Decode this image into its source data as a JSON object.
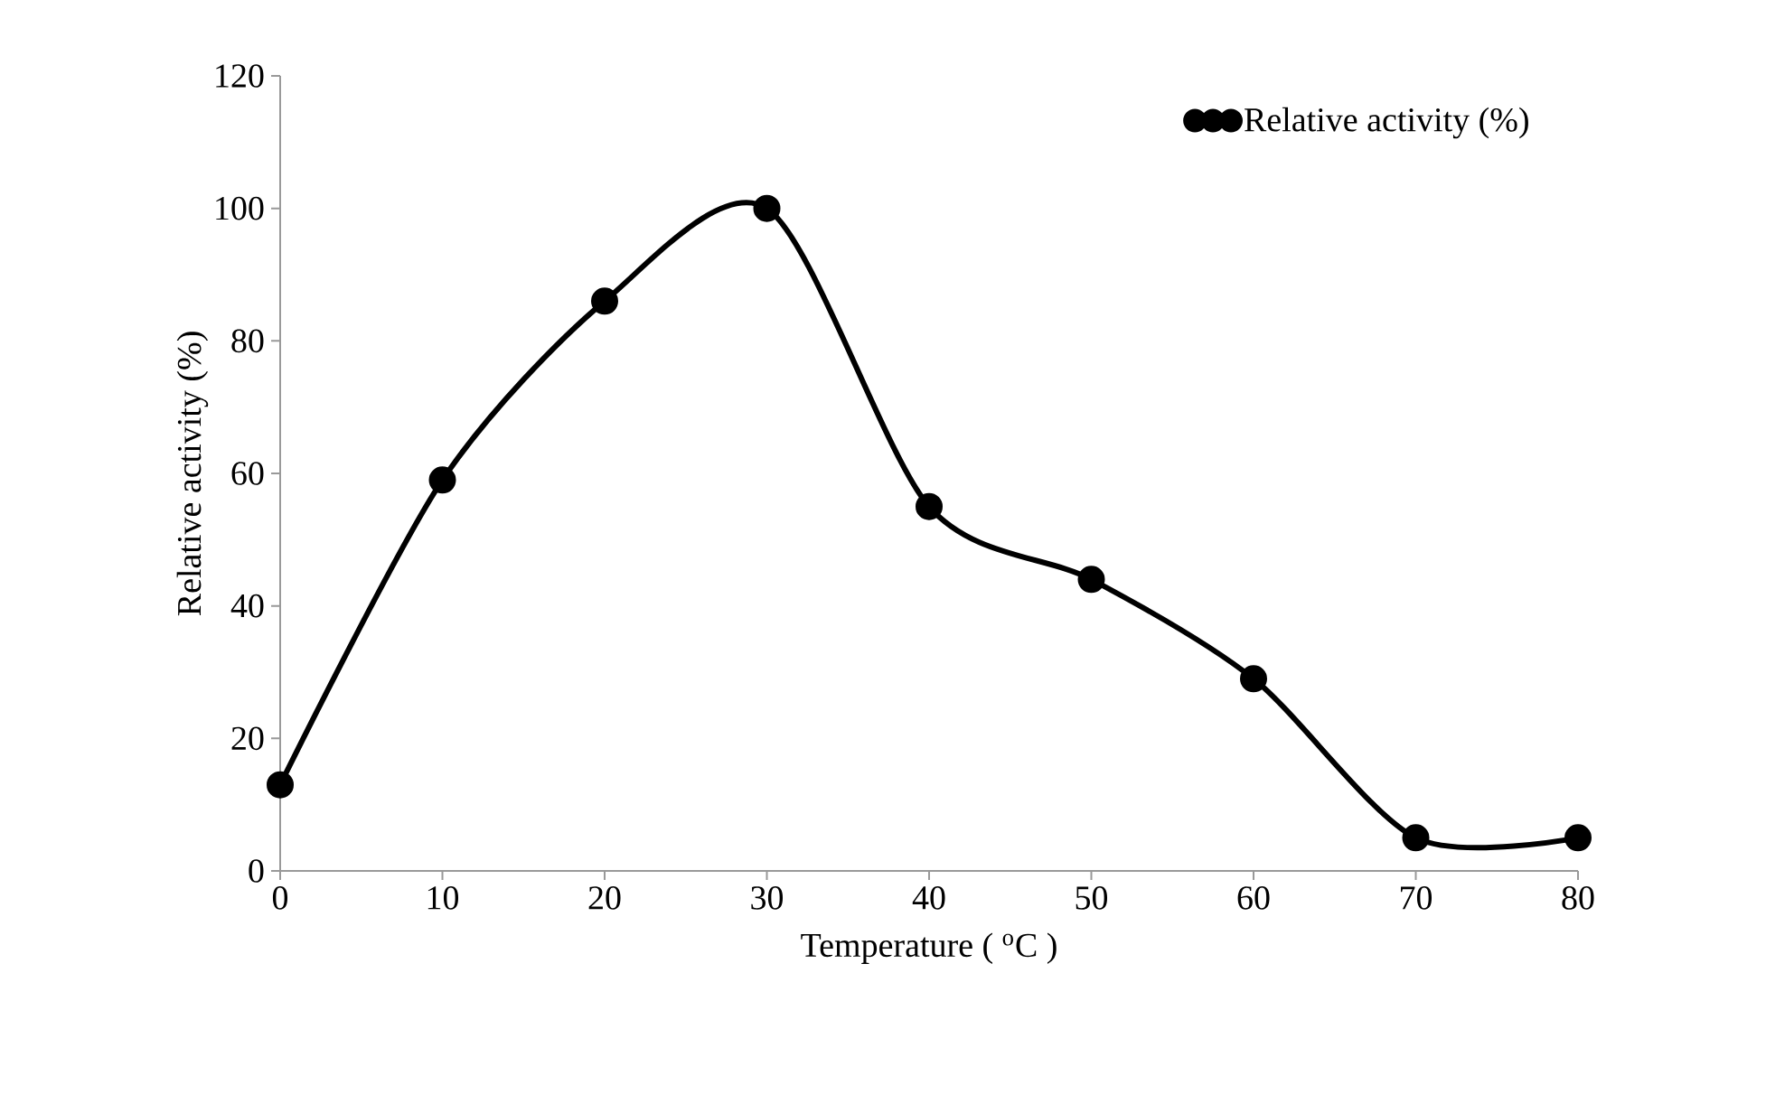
{
  "chart_data": {
    "type": "line",
    "xlabel": "Temperature ( $^{o}$C )",
    "ylabel": "Relative activity (%)",
    "x": [
      0,
      10,
      20,
      30,
      40,
      50,
      60,
      70,
      80
    ],
    "series": [
      {
        "name": "Relative activity (%)",
        "color": "#000000",
        "values": [
          13,
          59,
          86,
          100,
          55,
          44,
          29,
          5,
          5
        ]
      }
    ],
    "xlim": [
      0,
      80
    ],
    "xticks": [
      0,
      10,
      20,
      30,
      40,
      50,
      60,
      70,
      80
    ],
    "ylim": [
      0,
      120
    ],
    "yticks": [
      0,
      20,
      40,
      60,
      80,
      100,
      120
    ],
    "grid": false,
    "legend": "top right",
    "marker": "circle",
    "line_style": "solid"
  }
}
